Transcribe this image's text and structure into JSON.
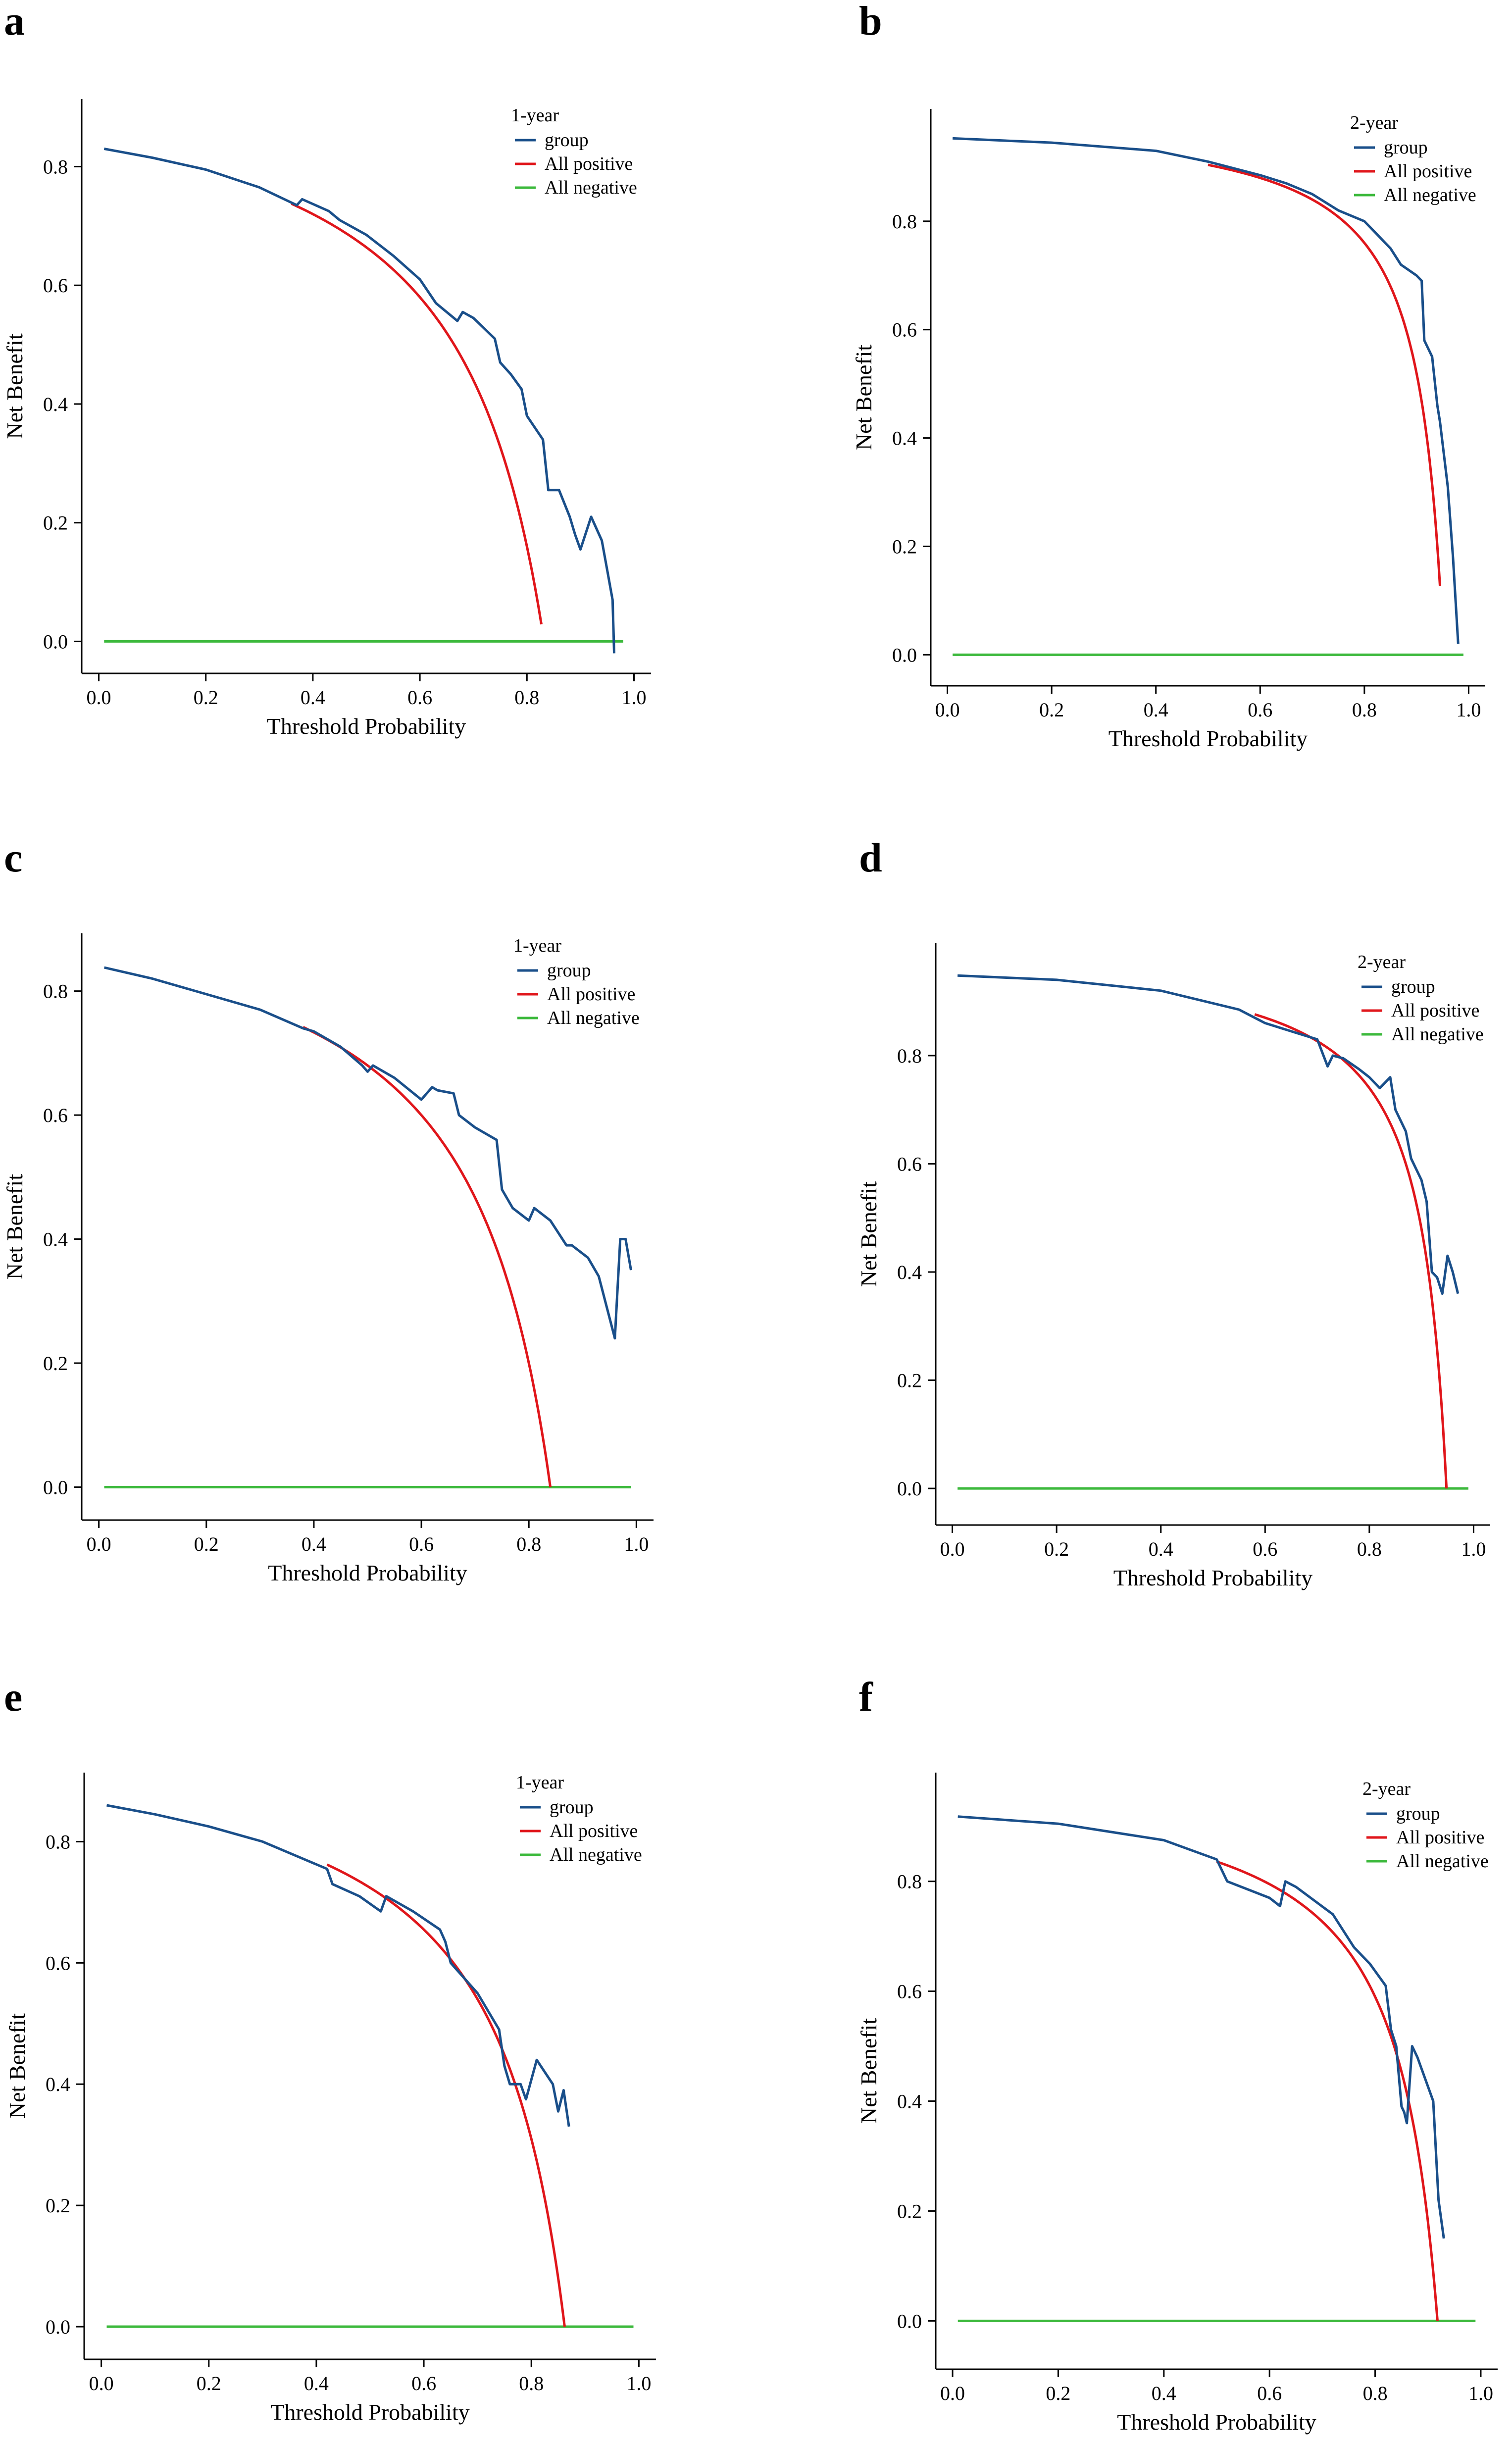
{
  "colors": {
    "group": "#1a4f8a",
    "all_positive": "#e0161b",
    "all_negative": "#3cb93c"
  },
  "chart_data": [
    {
      "panel": "a",
      "type": "line",
      "legend_title": "1-year",
      "xlabel": "Threshold Probability",
      "ylabel": "Net Benefit",
      "xlim": [
        0,
        1
      ],
      "ylim": [
        -0.02,
        0.88
      ],
      "xticks": [
        "0.0",
        "0.2",
        "0.4",
        "0.6",
        "0.8",
        "1.0"
      ],
      "yticks": [
        "0.0",
        "0.2",
        "0.4",
        "0.6",
        "0.8"
      ],
      "prevalence": 0.832,
      "series": [
        {
          "name": "group",
          "color": "#1a4f8a",
          "x": [
            0.01,
            0.1,
            0.2,
            0.3,
            0.37,
            0.38,
            0.43,
            0.45,
            0.5,
            0.55,
            0.6,
            0.63,
            0.67,
            0.68,
            0.7,
            0.74,
            0.75,
            0.77,
            0.79,
            0.8,
            0.83,
            0.84,
            0.86,
            0.88,
            0.89,
            0.9,
            0.92,
            0.94,
            0.95,
            0.96
          ],
          "y": [
            0.83,
            0.815,
            0.795,
            0.765,
            0.735,
            0.745,
            0.725,
            0.71,
            0.685,
            0.65,
            0.61,
            0.57,
            0.54,
            0.555,
            0.545,
            0.51,
            0.47,
            0.45,
            0.425,
            0.38,
            0.34,
            0.255,
            0.255,
            0.21,
            0.18,
            0.155,
            0.21,
            0.17,
            0.12,
            0.07
          ]
        },
        {
          "name": "All positive",
          "color": "#e0161b",
          "x_start": 0.36,
          "x_end": 0.827
        },
        {
          "name": "All negative",
          "color": "#3cb93c",
          "x_start": 0.01,
          "x_end": 0.98,
          "y_const": 0
        }
      ],
      "group_tail_x": 0.963,
      "group_tail_y": -0.02
    },
    {
      "panel": "b",
      "type": "line",
      "legend_title": "2-year",
      "xlabel": "Threshold Probability",
      "ylabel": "Net Benefit",
      "xlim": [
        0,
        1
      ],
      "ylim": [
        -0.02,
        0.97
      ],
      "xticks": [
        "0.0",
        "0.2",
        "0.4",
        "0.6",
        "0.8",
        "1.0"
      ],
      "yticks": [
        "0.0",
        "0.2",
        "0.4",
        "0.6",
        "0.8"
      ],
      "prevalence": 0.952,
      "series": [
        {
          "name": "group",
          "color": "#1a4f8a",
          "x": [
            0.01,
            0.2,
            0.4,
            0.5,
            0.6,
            0.65,
            0.7,
            0.75,
            0.8,
            0.82,
            0.85,
            0.87,
            0.9,
            0.91,
            0.915,
            0.93,
            0.94,
            0.945,
            0.96,
            0.97,
            0.98
          ],
          "y": [
            0.953,
            0.945,
            0.93,
            0.91,
            0.885,
            0.87,
            0.85,
            0.82,
            0.8,
            0.78,
            0.75,
            0.72,
            0.7,
            0.69,
            0.58,
            0.55,
            0.46,
            0.43,
            0.31,
            0.18,
            0.02
          ]
        },
        {
          "name": "All positive",
          "color": "#e0161b",
          "x_start": 0.5,
          "x_end": 0.945
        },
        {
          "name": "All negative",
          "color": "#3cb93c",
          "x_start": 0.01,
          "x_end": 0.99,
          "y_const": 0
        }
      ]
    },
    {
      "panel": "c",
      "type": "line",
      "legend_title": "1-year",
      "xlabel": "Threshold Probability",
      "ylabel": "Net Benefit",
      "xlim": [
        0,
        1
      ],
      "ylim": [
        -0.02,
        0.86
      ],
      "xticks": [
        "0.0",
        "0.2",
        "0.4",
        "0.6",
        "0.8",
        "1.0"
      ],
      "yticks": [
        "0.0",
        "0.2",
        "0.4",
        "0.6",
        "0.8"
      ],
      "prevalence": 0.84,
      "series": [
        {
          "name": "group",
          "color": "#1a4f8a",
          "x": [
            0.01,
            0.1,
            0.2,
            0.3,
            0.38,
            0.4,
            0.45,
            0.49,
            0.5,
            0.51,
            0.55,
            0.6,
            0.62,
            0.63,
            0.66,
            0.67,
            0.7,
            0.74,
            0.75,
            0.77,
            0.8,
            0.81,
            0.84,
            0.87,
            0.88,
            0.91,
            0.93,
            0.96,
            0.97,
            0.98,
            0.99
          ],
          "y": [
            0.838,
            0.82,
            0.795,
            0.77,
            0.74,
            0.735,
            0.71,
            0.68,
            0.67,
            0.68,
            0.66,
            0.625,
            0.645,
            0.64,
            0.635,
            0.6,
            0.58,
            0.56,
            0.48,
            0.45,
            0.43,
            0.45,
            0.43,
            0.39,
            0.39,
            0.37,
            0.34,
            0.24,
            0.4,
            0.4,
            0.35
          ]
        },
        {
          "name": "All positive",
          "color": "#e0161b",
          "x_start": 0.38,
          "x_end": 0.84
        },
        {
          "name": "All negative",
          "color": "#3cb93c",
          "x_start": 0.01,
          "x_end": 0.99,
          "y_const": 0
        }
      ]
    },
    {
      "panel": "d",
      "type": "line",
      "legend_title": "2-year",
      "xlabel": "Threshold Probability",
      "ylabel": "Net Benefit",
      "xlim": [
        0,
        1
      ],
      "ylim": [
        -0.03,
        0.97
      ],
      "xticks": [
        "0.0",
        "0.2",
        "0.4",
        "0.6",
        "0.8",
        "1.0"
      ],
      "yticks": [
        "0.0",
        "0.2",
        "0.4",
        "0.6",
        "0.8"
      ],
      "prevalence": 0.948,
      "series": [
        {
          "name": "group",
          "color": "#1a4f8a",
          "x": [
            0.01,
            0.2,
            0.4,
            0.55,
            0.6,
            0.65,
            0.7,
            0.72,
            0.73,
            0.75,
            0.78,
            0.8,
            0.82,
            0.84,
            0.85,
            0.87,
            0.88,
            0.89,
            0.9,
            0.91,
            0.92,
            0.93,
            0.94,
            0.95,
            0.96,
            0.97
          ],
          "y": [
            0.948,
            0.94,
            0.92,
            0.885,
            0.86,
            0.845,
            0.83,
            0.78,
            0.8,
            0.795,
            0.775,
            0.76,
            0.74,
            0.76,
            0.7,
            0.66,
            0.61,
            0.59,
            0.57,
            0.53,
            0.4,
            0.39,
            0.36,
            0.43,
            0.4,
            0.36
          ]
        },
        {
          "name": "All positive",
          "color": "#e0161b",
          "x_start": 0.58,
          "x_end": 0.948
        },
        {
          "name": "All negative",
          "color": "#3cb93c",
          "x_start": 0.01,
          "x_end": 0.99,
          "y_const": 0
        }
      ]
    },
    {
      "panel": "e",
      "type": "line",
      "legend_title": "1-year",
      "xlabel": "Threshold Probability",
      "ylabel": "Net Benefit",
      "xlim": [
        0,
        1
      ],
      "ylim": [
        -0.02,
        0.88
      ],
      "xticks": [
        "0.0",
        "0.2",
        "0.4",
        "0.6",
        "0.8",
        "1.0"
      ],
      "yticks": [
        "0.0",
        "0.2",
        "0.4",
        "0.6",
        "0.8"
      ],
      "prevalence": 0.862,
      "series": [
        {
          "name": "group",
          "color": "#1a4f8a",
          "x": [
            0.01,
            0.1,
            0.2,
            0.3,
            0.38,
            0.42,
            0.43,
            0.48,
            0.52,
            0.53,
            0.58,
            0.63,
            0.64,
            0.65,
            0.7,
            0.74,
            0.75,
            0.76,
            0.78,
            0.79,
            0.81,
            0.84,
            0.85,
            0.86,
            0.87
          ],
          "y": [
            0.86,
            0.845,
            0.825,
            0.8,
            0.77,
            0.755,
            0.73,
            0.71,
            0.685,
            0.71,
            0.685,
            0.655,
            0.635,
            0.6,
            0.55,
            0.49,
            0.43,
            0.4,
            0.4,
            0.375,
            0.44,
            0.4,
            0.355,
            0.39,
            0.33
          ]
        },
        {
          "name": "All positive",
          "color": "#e0161b",
          "x_start": 0.42,
          "x_end": 0.862
        },
        {
          "name": "All negative",
          "color": "#3cb93c",
          "x_start": 0.01,
          "x_end": 0.99,
          "y_const": 0
        }
      ]
    },
    {
      "panel": "f",
      "type": "line",
      "legend_title": "2-year",
      "xlabel": "Threshold Probability",
      "ylabel": "Net Benefit",
      "xlim": [
        0,
        1
      ],
      "ylim": [
        -0.05,
        0.96
      ],
      "xticks": [
        "0.0",
        "0.2",
        "0.4",
        "0.6",
        "0.8",
        "1.0"
      ],
      "yticks": [
        "0.0",
        "0.2",
        "0.4",
        "0.6",
        "0.8"
      ],
      "prevalence": 0.918,
      "series": [
        {
          "name": "group",
          "color": "#1a4f8a",
          "x": [
            0.01,
            0.2,
            0.4,
            0.5,
            0.52,
            0.6,
            0.62,
            0.63,
            0.65,
            0.72,
            0.75,
            0.76,
            0.79,
            0.82,
            0.83,
            0.84,
            0.85,
            0.855,
            0.86,
            0.87,
            0.88,
            0.91,
            0.92,
            0.93
          ],
          "y": [
            0.918,
            0.905,
            0.875,
            0.84,
            0.8,
            0.77,
            0.755,
            0.8,
            0.79,
            0.74,
            0.695,
            0.68,
            0.65,
            0.61,
            0.53,
            0.5,
            0.39,
            0.38,
            0.36,
            0.5,
            0.48,
            0.4,
            0.22,
            0.15
          ]
        },
        {
          "name": "All positive",
          "color": "#e0161b",
          "x_start": 0.5,
          "x_end": 0.918
        },
        {
          "name": "All negative",
          "color": "#3cb93c",
          "x_start": 0.01,
          "x_end": 0.99,
          "y_const": 0
        }
      ]
    }
  ]
}
